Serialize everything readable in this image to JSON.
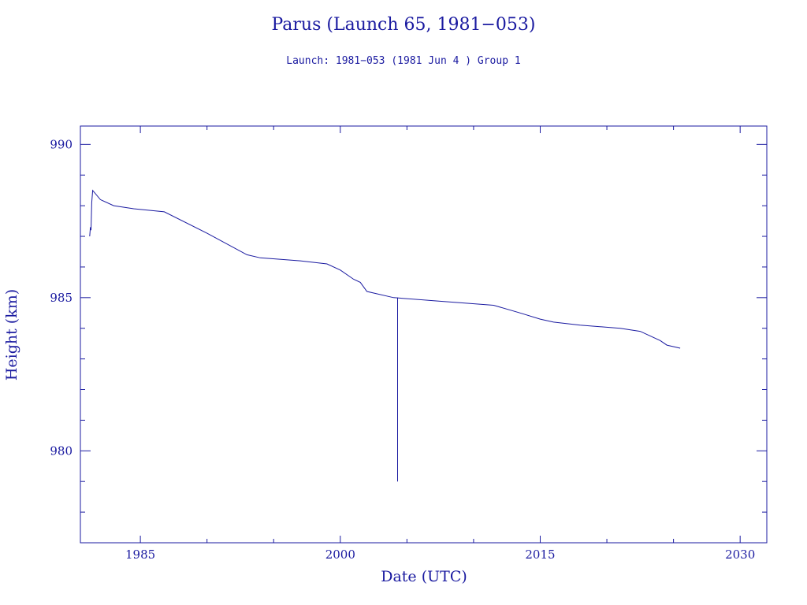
{
  "chart_data": {
    "type": "line",
    "title": "Parus (Launch 65, 1981−053)",
    "subtitle": "Launch: 1981−053  (1981 Jun  4 )  Group 1",
    "xlabel": "Date (UTC)",
    "ylabel": "Height (km)",
    "xlim": [
      1980.5,
      2032
    ],
    "ylim": [
      977,
      990.6
    ],
    "x_ticks": [
      1985,
      2000,
      2015,
      2030
    ],
    "x_tick_labels": [
      "1985",
      "2000",
      "2015",
      "2030"
    ],
    "y_ticks": [
      980,
      985,
      990
    ],
    "y_tick_labels": [
      "980",
      "985",
      "990"
    ],
    "grid": false,
    "color": "#1a1aa0",
    "series": [
      {
        "x": [
          1981.2,
          1981.25,
          1981.3,
          1981.35,
          1981.42,
          1982.0,
          1983.0,
          1984.5,
          1986.8,
          1990.0,
          1993.0,
          1994.0,
          1997.0,
          1999.0,
          2000.0,
          2001.0,
          2001.5,
          2002.0,
          2004.0,
          2007.0,
          2011.5,
          2013.5,
          2015.0,
          2016.0,
          2018.0,
          2021.0,
          2022.5,
          2024.0,
          2024.5,
          2025.5
        ],
        "y": [
          987.0,
          987.3,
          987.2,
          988.1,
          988.5,
          988.2,
          988.0,
          987.9,
          987.8,
          987.1,
          986.4,
          986.3,
          986.2,
          986.1,
          985.9,
          985.6,
          985.5,
          985.2,
          985.0,
          984.9,
          984.75,
          984.5,
          984.3,
          984.2,
          984.1,
          984.0,
          983.9,
          983.6,
          983.45,
          983.35
        ]
      },
      {
        "x": [
          2004.3,
          2004.3
        ],
        "y": [
          985.0,
          979.0
        ]
      }
    ]
  }
}
